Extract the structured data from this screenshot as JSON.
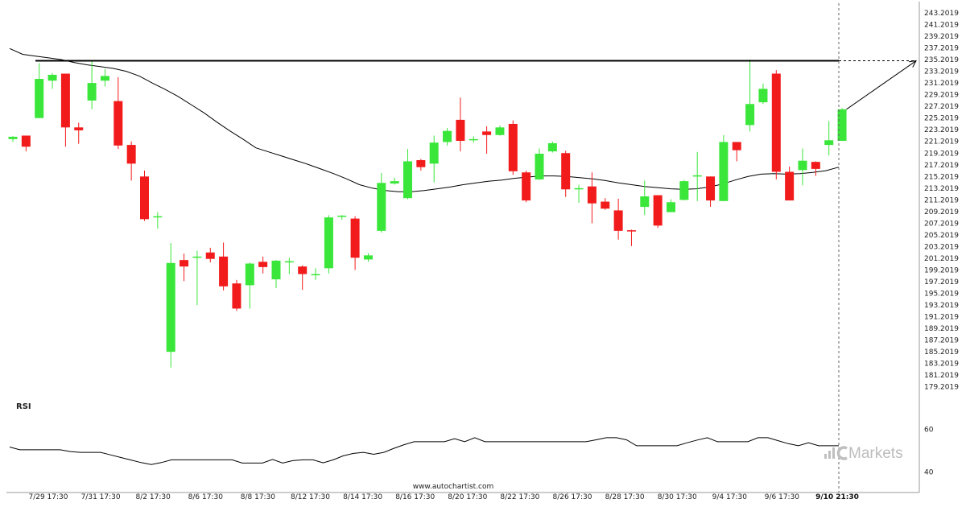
{
  "chart_data": {
    "type": "candlestick",
    "price_axis_labels": [
      "243.2019",
      "241.2019",
      "239.2019",
      "237.2019",
      "235.2019",
      "233.2019",
      "231.2019",
      "229.2019",
      "227.2019",
      "225.2019",
      "223.2019",
      "221.2019",
      "219.2019",
      "217.2019",
      "215.2019",
      "213.2019",
      "211.2019",
      "209.2019",
      "207.2019",
      "205.2019",
      "203.2019",
      "201.2019",
      "199.2019",
      "197.2019",
      "195.2019",
      "193.2019",
      "191.2019",
      "189.2019",
      "187.2019",
      "185.2019",
      "183.2019",
      "181.2019",
      "179.2019"
    ],
    "ylim": [
      178.2,
      244.3
    ],
    "x_labels": [
      "7/29 17:30",
      "7/31 17:30",
      "8/2 17:30",
      "8/6 17:30",
      "8/8 17:30",
      "8/12 17:30",
      "8/14 17:30",
      "8/16 17:30",
      "8/20 17:30",
      "8/22 17:30",
      "8/26 17:30",
      "8/28 17:30",
      "8/30 17:30",
      "9/4 17:30",
      "9/6 17:30"
    ],
    "x_label_last": "9/10 21:30",
    "candles": [
      {
        "o": 221.6,
        "h": 222.1,
        "l": 221.1,
        "c": 222.0
      },
      {
        "o": 222.2,
        "h": 222.2,
        "l": 219.5,
        "c": 220.3
      },
      {
        "o": 225.2,
        "h": 234.6,
        "l": 225.2,
        "c": 231.9
      },
      {
        "o": 231.6,
        "h": 232.9,
        "l": 230.2,
        "c": 232.6
      },
      {
        "o": 232.8,
        "h": 232.8,
        "l": 220.3,
        "c": 223.6
      },
      {
        "o": 223.6,
        "h": 224.4,
        "l": 220.8,
        "c": 223.1
      },
      {
        "o": 228.2,
        "h": 234.9,
        "l": 226.7,
        "c": 231.2
      },
      {
        "o": 231.6,
        "h": 233.6,
        "l": 230.6,
        "c": 232.4
      },
      {
        "o": 228.1,
        "h": 232.2,
        "l": 219.9,
        "c": 220.5
      },
      {
        "o": 220.6,
        "h": 221.2,
        "l": 214.5,
        "c": 217.4
      },
      {
        "o": 215.2,
        "h": 216.2,
        "l": 207.6,
        "c": 207.9
      },
      {
        "o": 208.3,
        "h": 209.1,
        "l": 206.3,
        "c": 208.4
      },
      {
        "o": 185.2,
        "h": 203.8,
        "l": 182.5,
        "c": 200.4
      },
      {
        "o": 200.9,
        "h": 202.0,
        "l": 197.3,
        "c": 199.8
      },
      {
        "o": 201.5,
        "h": 202.5,
        "l": 193.2,
        "c": 201.5
      },
      {
        "o": 202.2,
        "h": 203.0,
        "l": 200.5,
        "c": 201.1
      },
      {
        "o": 201.5,
        "h": 203.9,
        "l": 195.7,
        "c": 196.4
      },
      {
        "o": 196.9,
        "h": 197.5,
        "l": 192.2,
        "c": 192.6
      },
      {
        "o": 196.6,
        "h": 200.5,
        "l": 192.6,
        "c": 200.3
      },
      {
        "o": 200.6,
        "h": 201.5,
        "l": 198.6,
        "c": 199.7
      },
      {
        "o": 197.6,
        "h": 200.9,
        "l": 196.1,
        "c": 200.8
      },
      {
        "o": 200.6,
        "h": 201.3,
        "l": 198.5,
        "c": 200.7
      },
      {
        "o": 199.8,
        "h": 200.0,
        "l": 195.8,
        "c": 198.5
      },
      {
        "o": 198.5,
        "h": 199.5,
        "l": 197.5,
        "c": 198.5
      },
      {
        "o": 199.5,
        "h": 208.6,
        "l": 198.6,
        "c": 208.2
      },
      {
        "o": 208.3,
        "h": 208.6,
        "l": 207.8,
        "c": 208.5
      },
      {
        "o": 208.0,
        "h": 208.4,
        "l": 199.2,
        "c": 201.3
      },
      {
        "o": 201.0,
        "h": 202.1,
        "l": 200.6,
        "c": 201.7
      },
      {
        "o": 205.9,
        "h": 215.8,
        "l": 205.6,
        "c": 214.1
      },
      {
        "o": 214.0,
        "h": 215.0,
        "l": 213.8,
        "c": 214.4
      },
      {
        "o": 211.5,
        "h": 219.9,
        "l": 211.3,
        "c": 217.8
      },
      {
        "o": 218.0,
        "h": 218.2,
        "l": 216.2,
        "c": 216.8
      },
      {
        "o": 217.4,
        "h": 222.2,
        "l": 214.2,
        "c": 221.0
      },
      {
        "o": 221.1,
        "h": 223.5,
        "l": 220.5,
        "c": 223.0
      },
      {
        "o": 224.9,
        "h": 228.7,
        "l": 219.5,
        "c": 221.3
      },
      {
        "o": 221.4,
        "h": 222.1,
        "l": 221.0,
        "c": 221.6
      },
      {
        "o": 222.9,
        "h": 223.8,
        "l": 219.1,
        "c": 222.3
      },
      {
        "o": 222.3,
        "h": 223.9,
        "l": 222.2,
        "c": 223.6
      },
      {
        "o": 224.2,
        "h": 224.8,
        "l": 215.5,
        "c": 216.1
      },
      {
        "o": 215.9,
        "h": 216.2,
        "l": 210.8,
        "c": 211.1
      },
      {
        "o": 214.7,
        "h": 220.0,
        "l": 214.6,
        "c": 219.1
      },
      {
        "o": 219.5,
        "h": 221.2,
        "l": 219.3,
        "c": 220.9
      },
      {
        "o": 219.2,
        "h": 219.6,
        "l": 211.7,
        "c": 213.0
      },
      {
        "o": 213.1,
        "h": 213.8,
        "l": 210.7,
        "c": 213.2
      },
      {
        "o": 213.5,
        "h": 215.9,
        "l": 207.2,
        "c": 210.6
      },
      {
        "o": 210.9,
        "h": 211.5,
        "l": 209.5,
        "c": 209.7
      },
      {
        "o": 209.4,
        "h": 211.4,
        "l": 204.4,
        "c": 205.9
      },
      {
        "o": 206.0,
        "h": 206.1,
        "l": 203.3,
        "c": 205.8
      },
      {
        "o": 210.0,
        "h": 214.5,
        "l": 208.6,
        "c": 211.8
      },
      {
        "o": 212.0,
        "h": 212.0,
        "l": 206.4,
        "c": 206.8
      },
      {
        "o": 209.1,
        "h": 211.3,
        "l": 209.1,
        "c": 210.8
      },
      {
        "o": 211.2,
        "h": 214.6,
        "l": 211.1,
        "c": 214.4
      },
      {
        "o": 215.3,
        "h": 219.4,
        "l": 211.0,
        "c": 215.4
      },
      {
        "o": 215.2,
        "h": 215.2,
        "l": 210.0,
        "c": 211.1
      },
      {
        "o": 211.0,
        "h": 222.3,
        "l": 211.0,
        "c": 221.1
      },
      {
        "o": 221.1,
        "h": 221.1,
        "l": 217.8,
        "c": 219.7
      },
      {
        "o": 224.0,
        "h": 235.2,
        "l": 222.9,
        "c": 227.6
      },
      {
        "o": 227.9,
        "h": 231.1,
        "l": 227.6,
        "c": 230.2
      },
      {
        "o": 232.8,
        "h": 233.4,
        "l": 214.7,
        "c": 216.0
      },
      {
        "o": 216.0,
        "h": 216.9,
        "l": 211.1,
        "c": 211.1
      },
      {
        "o": 216.3,
        "h": 220.0,
        "l": 213.7,
        "c": 217.9
      },
      {
        "o": 217.7,
        "h": 217.8,
        "l": 215.3,
        "c": 216.5
      },
      {
        "o": 220.6,
        "h": 224.7,
        "l": 218.8,
        "c": 221.4
      },
      {
        "o": 221.3,
        "h": 226.9,
        "l": 221.3,
        "c": 226.7
      }
    ],
    "moving_average": [
      237.1,
      236.1,
      235.8,
      235.5,
      235.2,
      234.7,
      234.3,
      234.0,
      233.7,
      233.2,
      232.4,
      231.2,
      230.1,
      228.9,
      227.5,
      226.1,
      224.5,
      223.0,
      221.6,
      220.1,
      219.4,
      218.7,
      218.0,
      217.3,
      216.5,
      215.7,
      214.8,
      213.8,
      213.2,
      212.8,
      212.6,
      212.6,
      212.8,
      213.1,
      213.4,
      213.8,
      214.1,
      214.4,
      214.6,
      214.9,
      215.1,
      215.3,
      215.3,
      215.2,
      215.0,
      214.8,
      214.5,
      214.1,
      213.8,
      213.5,
      213.3,
      213.1,
      213.0,
      213.1,
      213.4,
      213.9,
      214.6,
      215.2,
      215.6,
      215.7,
      215.6,
      215.7,
      215.9,
      216.2,
      216.8
    ],
    "resistance_level": 235.0,
    "projection_target": 235.0,
    "rsi": {
      "label": "RSI",
      "axis_labels": [
        "60",
        "40"
      ],
      "values": [
        51.7,
        50.4,
        50.4,
        50.4,
        50.4,
        50.4,
        49.6,
        49.2,
        49.2,
        49.2,
        48.0,
        46.8,
        45.6,
        44.4,
        43.5,
        44.4,
        45.7,
        45.7,
        45.7,
        45.7,
        45.7,
        45.7,
        45.7,
        44.2,
        44.2,
        44.2,
        45.9,
        44.2,
        45.3,
        45.7,
        45.7,
        44.3,
        45.7,
        47.6,
        48.7,
        49.2,
        48.3,
        49.2,
        51.1,
        52.8,
        54.2,
        54.2,
        54.2,
        54.2,
        55.6,
        54.2,
        56.1,
        54.2,
        54.2,
        54.2,
        54.2,
        54.2,
        54.2,
        54.2,
        54.2,
        54.2,
        54.2,
        54.2,
        55.1,
        56.1,
        56.1,
        55.1,
        52.3,
        52.3,
        52.3,
        52.3,
        52.3,
        53.7,
        55.0,
        56.1,
        54.2,
        54.2,
        54.2,
        54.2,
        56.1,
        56.1,
        54.7,
        53.3,
        52.3,
        53.7,
        52.3,
        52.3,
        52.3
      ],
      "ylim": [
        33,
        67
      ]
    }
  },
  "footer": {
    "watermark": "www.autochartist.com"
  },
  "brand": {
    "text": "Markets",
    "color": "#bdbdbd"
  },
  "colors": {
    "bull": "#39e639",
    "bear": "#f21b1b",
    "line": "#000000",
    "grid_divider": "#cccccc"
  }
}
